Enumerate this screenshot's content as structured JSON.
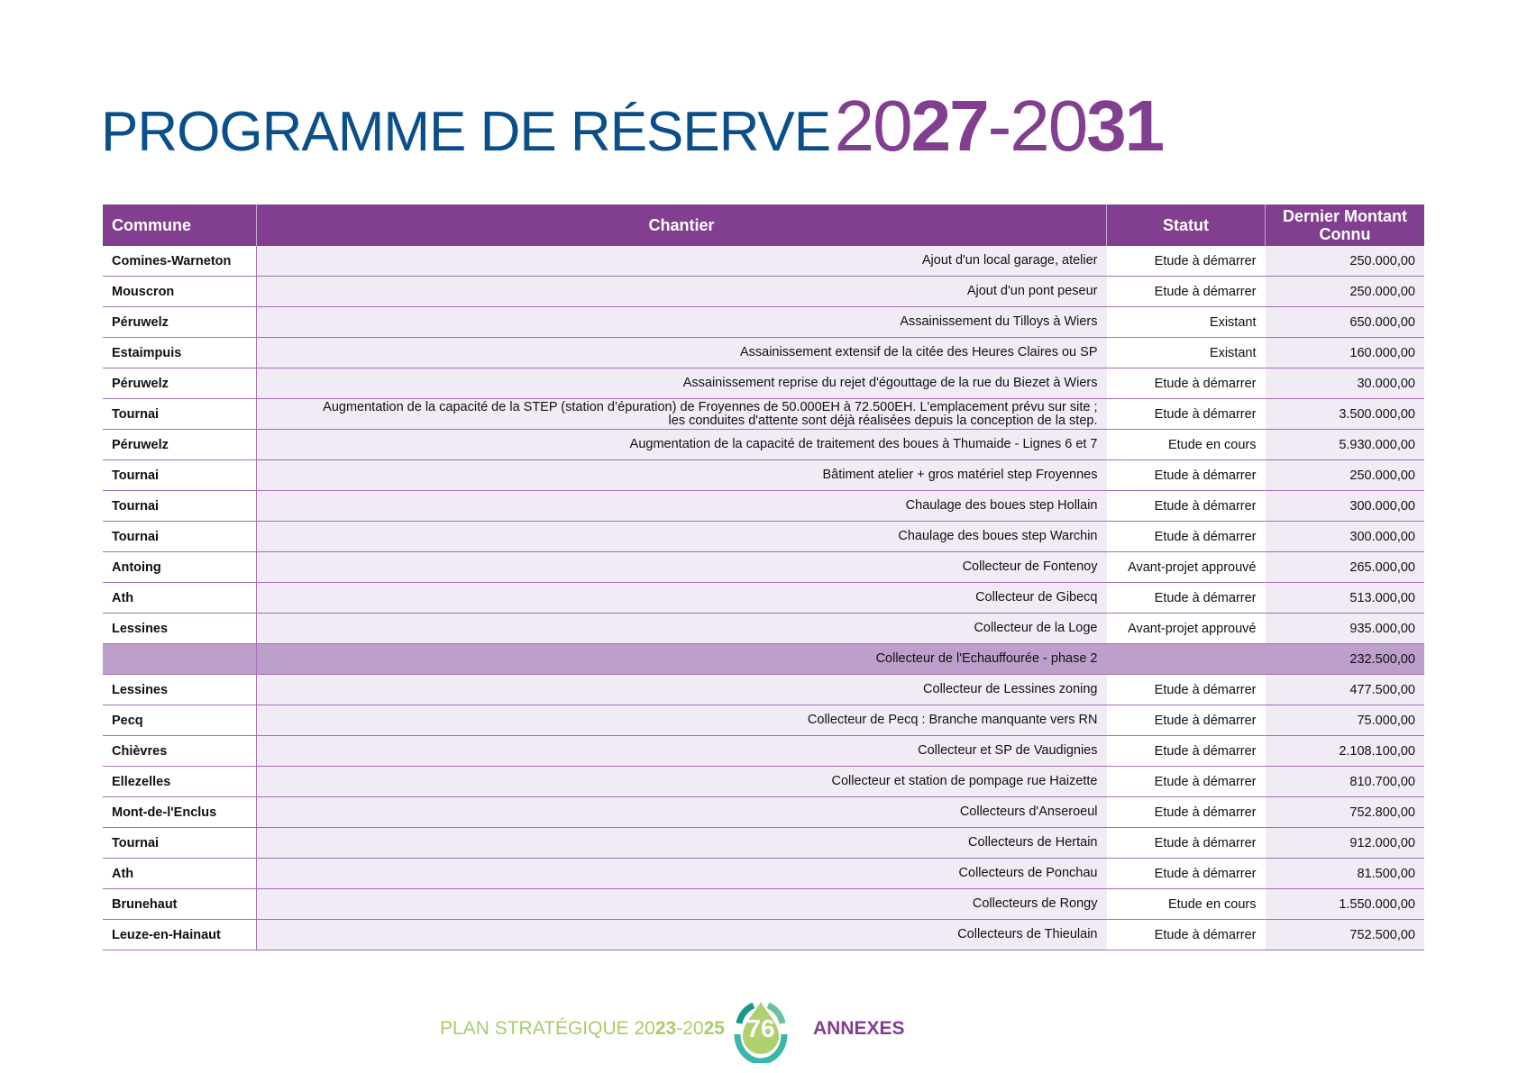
{
  "title": {
    "main": "PROGRAMME DE RÉSERVE",
    "year_start_light": "20",
    "year_start_bold": "27",
    "dash": "-",
    "year_end_light": "20",
    "year_end_bold": "31"
  },
  "table": {
    "headers": [
      "Commune",
      "Chantier",
      "Statut",
      "Dernier Montant Connu"
    ],
    "rows": [
      {
        "commune": "Comines-Warneton",
        "chantier": "Ajout d'un local garage, atelier",
        "statut": "Etude à démarrer",
        "montant": "250.000,00"
      },
      {
        "commune": "Mouscron",
        "chantier": "Ajout d'un pont peseur",
        "statut": "Etude à démarrer",
        "montant": "250.000,00"
      },
      {
        "commune": "Péruwelz",
        "chantier": "Assainissement du Tilloys à Wiers",
        "statut": "Existant",
        "montant": "650.000,00"
      },
      {
        "commune": "Estaimpuis",
        "chantier": "Assainissement extensif de la citée des Heures Claires ou SP",
        "statut": "Existant",
        "montant": "160.000,00"
      },
      {
        "commune": "Péruwelz",
        "chantier": "Assainissement reprise du rejet d'égouttage de la rue du Biezet à Wiers",
        "statut": "Etude à démarrer",
        "montant": "30.000,00"
      },
      {
        "commune": "Tournai",
        "chantier": "Augmentation de la capacité de la STEP (station d’épuration) de Froyennes de 50.000EH à 72.500EH. L'emplacement prévu sur site ;",
        "chantier_line2": "les conduites d'attente sont déjà réalisées depuis la conception de la step.",
        "statut": "Etude à démarrer",
        "montant": "3.500.000,00"
      },
      {
        "commune": "Péruwelz",
        "chantier": "Augmentation de la capacité de traitement des boues à Thumaide - Lignes 6 et 7",
        "statut": "Etude en cours",
        "montant": "5.930.000,00"
      },
      {
        "commune": "Tournai",
        "chantier": "Bâtiment atelier + gros matériel step Froyennes",
        "statut": "Etude à démarrer",
        "montant": "250.000,00"
      },
      {
        "commune": "Tournai",
        "chantier": "Chaulage des boues step Hollain",
        "statut": "Etude à démarrer",
        "montant": "300.000,00"
      },
      {
        "commune": "Tournai",
        "chantier": "Chaulage des boues step Warchin",
        "statut": "Etude à démarrer",
        "montant": "300.000,00"
      },
      {
        "commune": "Antoing",
        "chantier": "Collecteur de Fontenoy",
        "statut": "Avant-projet approuvé",
        "montant": "265.000,00"
      },
      {
        "commune": "Ath",
        "chantier": "Collecteur de Gibecq",
        "statut": "Etude à démarrer",
        "montant": "513.000,00"
      },
      {
        "commune": "Lessines",
        "chantier": "Collecteur de la Loge",
        "statut": "Avant-projet approuvé",
        "montant": "935.000,00"
      },
      {
        "commune": "",
        "chantier": "Collecteur de l'Echauffourée - phase 2",
        "statut": "",
        "montant": "232.500,00"
      },
      {
        "commune": "Lessines",
        "chantier": "Collecteur de Lessines zoning",
        "statut": "Etude à démarrer",
        "montant": "477.500,00"
      },
      {
        "commune": "Pecq",
        "chantier": "Collecteur de Pecq  : Branche manquante vers RN",
        "statut": "Etude à démarrer",
        "montant": "75.000,00"
      },
      {
        "commune": "Chièvres",
        "chantier": "Collecteur et SP de Vaudignies",
        "statut": "Etude à démarrer",
        "montant": "2.108.100,00"
      },
      {
        "commune": "Ellezelles",
        "chantier": "Collecteur et station de pompage rue Haizette",
        "statut": "Etude à démarrer",
        "montant": "810.700,00"
      },
      {
        "commune": "Mont-de-l'Enclus",
        "chantier": "Collecteurs d'Anseroeul",
        "statut": "Etude à démarrer",
        "montant": "752.800,00"
      },
      {
        "commune": "Tournai",
        "chantier": "Collecteurs de  Hertain",
        "statut": "Etude à démarrer",
        "montant": "912.000,00"
      },
      {
        "commune": "Ath",
        "chantier": "Collecteurs de  Ponchau",
        "statut": "Etude à démarrer",
        "montant": "81.500,00"
      },
      {
        "commune": "Brunehaut",
        "chantier": "Collecteurs de  Rongy",
        "statut": "Etude en cours",
        "montant": "1.550.000,00"
      },
      {
        "commune": "Leuze-en-Hainaut",
        "chantier": "Collecteurs de  Thieulain",
        "statut": "Etude à démarrer",
        "montant": "752.500,00"
      }
    ]
  },
  "footer": {
    "plan_light": "PLAN STRATÉGIQUE 20",
    "plan_b1": "23",
    "plan_mid": "-20",
    "plan_b2": "25",
    "page_number": "76",
    "section": "ANNEXES"
  },
  "colors": {
    "title_blue": "#0b4f8a",
    "purple": "#823f8f",
    "row_lavender": "#f1ebf6",
    "highlight_row": "#bc9fcb",
    "green": "#a9cd6b",
    "teal": "#3cb6a8"
  }
}
